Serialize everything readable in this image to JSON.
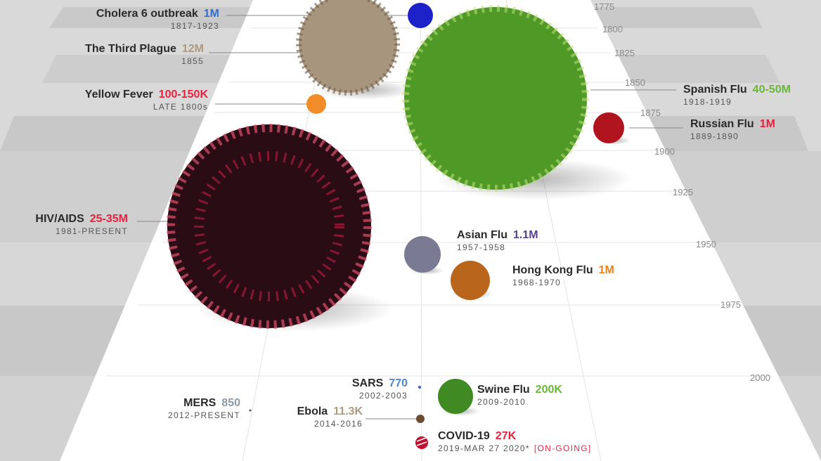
{
  "years": [
    "1775",
    "1800",
    "1825",
    "1850",
    "1875",
    "1900",
    "1925",
    "1950",
    "1975",
    "2000"
  ],
  "pandemics": [
    {
      "id": "cholera6",
      "name": "Cholera 6 outbreak",
      "value": "1M",
      "dates": "1817-1923",
      "color": "#2f6fd6",
      "blob": "#1c22c8"
    },
    {
      "id": "third-plague",
      "name": "The Third Plague",
      "value": "12M",
      "dates": "1855",
      "color": "#b09a7e",
      "blob": "#a8957e"
    },
    {
      "id": "yellow-fever",
      "name": "Yellow Fever",
      "value": "100-150K",
      "dates": "LATE 1800s",
      "color": "#e8213e",
      "blob": "#f28c28"
    },
    {
      "id": "spanish-flu",
      "name": "Spanish Flu",
      "value": "40-50M",
      "dates": "1918-1919",
      "color": "#6ab636",
      "blob": "#4f9a26"
    },
    {
      "id": "russian-flu",
      "name": "Russian Flu",
      "value": "1M",
      "dates": "1889-1890",
      "color": "#e8213e",
      "blob": "#b0141f"
    },
    {
      "id": "hiv-aids",
      "name": "HIV/AIDS",
      "value": "25-35M",
      "dates": "1981-PRESENT",
      "color": "#e8213e",
      "blob": "#c81e45"
    },
    {
      "id": "asian-flu",
      "name": "Asian Flu",
      "value": "1.1M",
      "dates": "1957-1958",
      "color": "#5b3f8f",
      "blob": "#7a7a92"
    },
    {
      "id": "hong-kong-flu",
      "name": "Hong Kong Flu",
      "value": "1M",
      "dates": "1968-1970",
      "color": "#f07f1a",
      "blob": "#b9651c"
    },
    {
      "id": "sars",
      "name": "SARS",
      "value": "770",
      "dates": "2002-2003",
      "color": "#4a86d6",
      "blob": "#3a5fd0"
    },
    {
      "id": "swine-flu",
      "name": "Swine Flu",
      "value": "200K",
      "dates": "2009-2010",
      "color": "#6ab636",
      "blob": "#3f8a22"
    },
    {
      "id": "mers",
      "name": "MERS",
      "value": "850",
      "dates": "2012-PRESENT",
      "color": "#8d9aa6",
      "blob": "#555555"
    },
    {
      "id": "ebola",
      "name": "Ebola",
      "value": "11.3K",
      "dates": "2014-2016",
      "color": "#b09a7e",
      "blob": "#6b4b32"
    },
    {
      "id": "covid19",
      "name": "COVID-19",
      "value": "27K",
      "dates": "2019-MAR 27 2020*",
      "color": "#e8213e",
      "blob": "#c0122e",
      "status": "[ON-GOING]"
    }
  ]
}
